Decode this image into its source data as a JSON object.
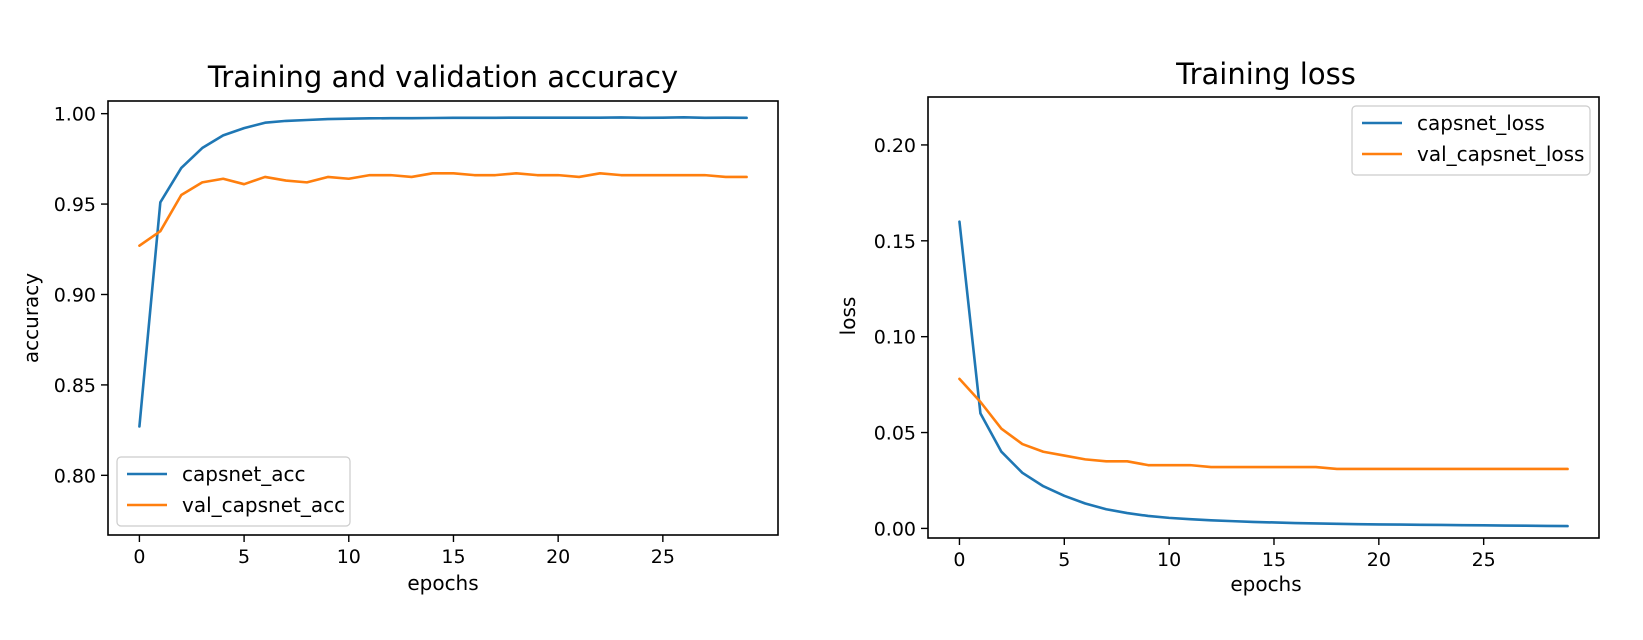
{
  "chart_data": [
    {
      "type": "line",
      "title": "Training and validation accuracy",
      "xlabel": "epochs",
      "ylabel": "accuracy",
      "xlim": [
        -1.5,
        30.5
      ],
      "ylim": [
        0.767,
        1.007
      ],
      "xticks": [
        0,
        5,
        10,
        15,
        20,
        25
      ],
      "xtick_labels": [
        "0",
        "5",
        "10",
        "15",
        "20",
        "25"
      ],
      "yticks": [
        0.8,
        0.85,
        0.9,
        0.95,
        1.0
      ],
      "ytick_labels": [
        "0.80",
        "0.85",
        "0.90",
        "0.95",
        "1.00"
      ],
      "grid": false,
      "legend_position": "lower-left",
      "x": [
        0,
        1,
        2,
        3,
        4,
        5,
        6,
        7,
        8,
        9,
        10,
        11,
        12,
        13,
        14,
        15,
        16,
        17,
        18,
        19,
        20,
        21,
        22,
        23,
        24,
        25,
        26,
        27,
        28,
        29
      ],
      "series": [
        {
          "name": "capsnet_acc",
          "color": "#1f77b4",
          "values": [
            0.827,
            0.951,
            0.97,
            0.981,
            0.988,
            0.992,
            0.995,
            0.996,
            0.9965,
            0.997,
            0.9972,
            0.9974,
            0.9975,
            0.9975,
            0.9976,
            0.9977,
            0.9977,
            0.9977,
            0.9978,
            0.9978,
            0.9978,
            0.9978,
            0.9978,
            0.9979,
            0.9977,
            0.9978,
            0.998,
            0.9977,
            0.9978,
            0.9977
          ]
        },
        {
          "name": "val_capsnet_acc",
          "color": "#ff7f0e",
          "values": [
            0.927,
            0.935,
            0.955,
            0.962,
            0.964,
            0.961,
            0.965,
            0.963,
            0.962,
            0.965,
            0.964,
            0.966,
            0.966,
            0.965,
            0.967,
            0.967,
            0.966,
            0.966,
            0.967,
            0.966,
            0.966,
            0.965,
            0.967,
            0.966,
            0.966,
            0.966,
            0.966,
            0.966,
            0.965,
            0.965
          ]
        }
      ]
    },
    {
      "type": "line",
      "title": "Training loss",
      "xlabel": "epochs",
      "ylabel": "loss",
      "xlim": [
        -1.5,
        30.5
      ],
      "ylim": [
        -0.005,
        0.225
      ],
      "xticks": [
        0,
        5,
        10,
        15,
        20,
        25
      ],
      "xtick_labels": [
        "0",
        "5",
        "10",
        "15",
        "20",
        "25"
      ],
      "yticks": [
        0.0,
        0.05,
        0.1,
        0.15,
        0.2
      ],
      "ytick_labels": [
        "0.00",
        "0.05",
        "0.10",
        "0.15",
        "0.20"
      ],
      "grid": false,
      "legend_position": "upper-right",
      "x": [
        0,
        1,
        2,
        3,
        4,
        5,
        6,
        7,
        8,
        9,
        10,
        11,
        12,
        13,
        14,
        15,
        16,
        17,
        18,
        19,
        20,
        21,
        22,
        23,
        24,
        25,
        26,
        27,
        28,
        29
      ],
      "series": [
        {
          "name": "capsnet_loss",
          "color": "#1f77b4",
          "values": [
            0.16,
            0.06,
            0.04,
            0.029,
            0.022,
            0.017,
            0.013,
            0.01,
            0.008,
            0.0065,
            0.0055,
            0.0048,
            0.0042,
            0.0038,
            0.0034,
            0.0031,
            0.0028,
            0.0026,
            0.0024,
            0.0022,
            0.0021,
            0.002,
            0.0019,
            0.0018,
            0.0017,
            0.0016,
            0.0015,
            0.0014,
            0.0013,
            0.0012
          ]
        },
        {
          "name": "val_capsnet_loss",
          "color": "#ff7f0e",
          "values": [
            0.078,
            0.066,
            0.052,
            0.044,
            0.04,
            0.038,
            0.036,
            0.035,
            0.035,
            0.033,
            0.033,
            0.033,
            0.032,
            0.032,
            0.032,
            0.032,
            0.032,
            0.032,
            0.031,
            0.031,
            0.031,
            0.031,
            0.031,
            0.031,
            0.031,
            0.031,
            0.031,
            0.031,
            0.031,
            0.031
          ]
        }
      ]
    }
  ]
}
